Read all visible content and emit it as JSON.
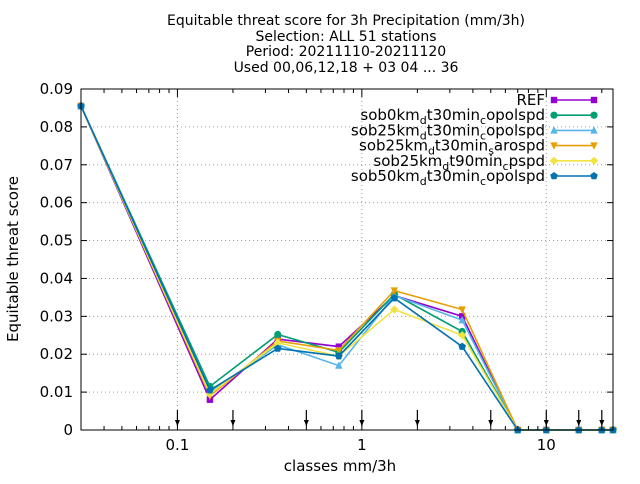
{
  "chart_data": {
    "type": "line",
    "title_lines": [
      "Equitable threat score  for 3h Precipitation (mm/3h)",
      "Selection: ALL      51 stations",
      "Period: 20211110-20211120",
      "Used 00,06,12,18 + 03 04 ... 36"
    ],
    "xlabel": "classes mm/3h",
    "ylabel": "Equitable threat score",
    "x_scale": "log",
    "xlim": [
      0.03,
      23
    ],
    "ylim": [
      0,
      0.09
    ],
    "x_tick_labels": [
      "0.1",
      "1",
      "10"
    ],
    "y_ticks": [
      "0",
      "0.01",
      "0.02",
      "0.03",
      "0.04",
      "0.05",
      "0.06",
      "0.07",
      "0.08",
      "0.09"
    ],
    "grid": true,
    "legend_position": "top-right",
    "x": [
      0.03,
      0.15,
      0.35,
      0.75,
      1.5,
      3.5,
      7,
      10,
      15,
      20,
      23
    ],
    "threshold_markers": [
      0.1,
      0.2,
      0.5,
      1,
      2,
      5,
      10,
      15,
      20
    ],
    "series": [
      {
        "name": "REF",
        "base": "REF",
        "sub": "",
        "color": "#9400d3",
        "marker": "square",
        "values": [
          0.0855,
          0.008,
          0.024,
          0.022,
          0.0355,
          0.03,
          0,
          0,
          0,
          0,
          0
        ]
      },
      {
        "name": "sob0kmdt30mincopolspd",
        "base": "sob0km",
        "sub": "d",
        "tail": "t30min",
        "sub2": "c",
        "tail2": "opolspd",
        "color": "#009e73",
        "marker": "circle",
        "values": [
          0.0855,
          0.0115,
          0.0252,
          0.0205,
          0.0358,
          0.026,
          0,
          0,
          0,
          0,
          0
        ]
      },
      {
        "name": "sob25kmdt30mincopolspd",
        "base": "sob25km",
        "sub": "d",
        "tail": "t30min",
        "sub2": "c",
        "tail2": "opolspd",
        "color": "#56b4e9",
        "marker": "triangle",
        "values": [
          0.0855,
          0.01,
          0.0225,
          0.017,
          0.0355,
          0.029,
          0,
          0,
          0,
          0,
          0
        ]
      },
      {
        "name": "sob25kmdt30minsarospd",
        "base": "sob25km",
        "sub": "d",
        "tail": "t30min",
        "sub2": "s",
        "tail2": "arospd",
        "color": "#e69f00",
        "marker": "triangle-down",
        "values": [
          0.0855,
          0.009,
          0.0235,
          0.021,
          0.0368,
          0.0318,
          0,
          0,
          0,
          0,
          0
        ]
      },
      {
        "name": "sob25kmdt90mincpspd",
        "base": "sob25km",
        "sub": "d",
        "tail": "t90min",
        "sub2": "c",
        "tail2": "pspd",
        "color": "#f0e442",
        "marker": "diamond",
        "values": [
          0.0855,
          0.0095,
          0.023,
          0.0195,
          0.0318,
          0.025,
          0,
          0,
          0,
          0,
          0
        ]
      },
      {
        "name": "sob50kmdt30mincopolspd",
        "base": "sob50km",
        "sub": "d",
        "tail": "t30min",
        "sub2": "c",
        "tail2": "opolspd",
        "color": "#0072b2",
        "marker": "pentagon",
        "values": [
          0.0855,
          0.0105,
          0.0215,
          0.0195,
          0.0348,
          0.022,
          0,
          0,
          0,
          0,
          0
        ]
      }
    ]
  }
}
